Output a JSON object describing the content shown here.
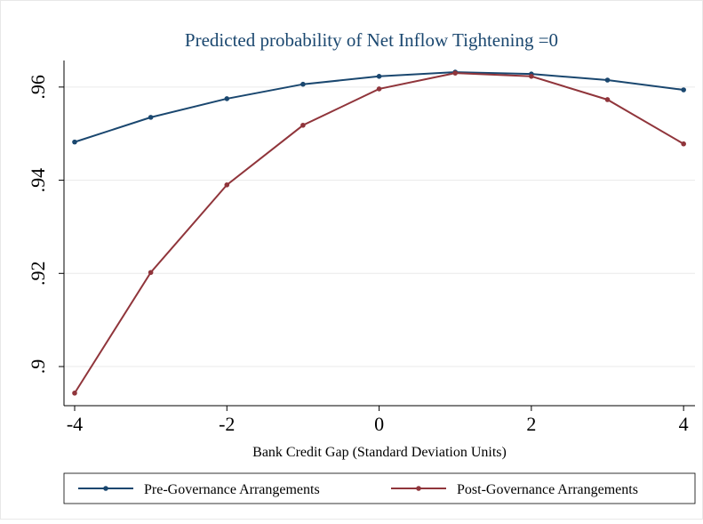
{
  "chart_data": {
    "type": "line",
    "title": "Predicted probability of Net Inflow Tightening =0",
    "x_label": "Bank Credit Gap (Standard Deviation Units)",
    "x": [
      -4,
      -3,
      -2,
      -1,
      0,
      1,
      2,
      3,
      4
    ],
    "series": [
      {
        "name": "Pre-Governance Arrangements",
        "color": "#1a476f",
        "values": [
          0.9482,
          0.9535,
          0.9575,
          0.9606,
          0.9623,
          0.9632,
          0.9628,
          0.9615,
          0.9594
        ]
      },
      {
        "name": "Post-Governance Arrangements",
        "color": "#90353b",
        "values": [
          0.8943,
          0.9202,
          0.939,
          0.9518,
          0.9596,
          0.963,
          0.9623,
          0.9573,
          0.9478
        ]
      }
    ],
    "xlim": [
      -4.14,
      4.15
    ],
    "xticks": [
      -4,
      -2,
      0,
      2,
      4
    ],
    "ylim": [
      0.8916,
      0.9657
    ],
    "yticks": [
      {
        "value": 0.9,
        "label": ".9"
      },
      {
        "value": 0.92,
        "label": ".92"
      },
      {
        "value": 0.94,
        "label": ".94"
      },
      {
        "value": 0.96,
        "label": ".96"
      }
    ],
    "grid": true,
    "legend": "bottom"
  }
}
